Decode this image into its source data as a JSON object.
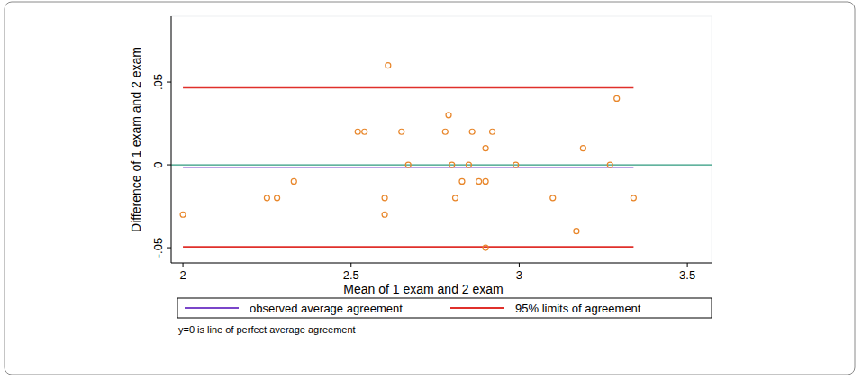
{
  "chart_data": {
    "type": "scatter",
    "x_label": "Mean of 1 exam and 2 exam",
    "y_label": "Difference of 1 exam and 2 exam",
    "x": [
      2.0,
      2.25,
      2.28,
      2.33,
      2.52,
      2.54,
      2.6,
      2.6,
      2.61,
      2.65,
      2.67,
      2.78,
      2.79,
      2.8,
      2.81,
      2.83,
      2.85,
      2.86,
      2.88,
      2.9,
      2.9,
      2.9,
      2.92,
      2.99,
      3.1,
      3.17,
      3.19,
      3.27,
      3.29,
      3.34
    ],
    "values": [
      -0.03,
      -0.02,
      -0.02,
      -0.01,
      0.02,
      0.02,
      -0.03,
      -0.02,
      0.06,
      0.02,
      0,
      0.02,
      0.03,
      0,
      -0.02,
      -0.01,
      0,
      0.02,
      -0.01,
      -0.01,
      0.01,
      -0.05,
      0.02,
      0,
      -0.02,
      -0.04,
      0.01,
      0,
      0.04,
      -0.02
    ],
    "color": "#e8862a",
    "marker": "hollow-circle",
    "xlim": [
      1.965,
      3.572
    ],
    "ylim": [
      -0.0592,
      0.0897
    ],
    "xticks": [
      2,
      2.5,
      3,
      3.5
    ],
    "yticks": [
      {
        "value": -0.05,
        "label": "-.05"
      },
      0,
      {
        "value": 0.05,
        "label": ".05"
      }
    ],
    "grid": false,
    "legend": "bottom",
    "mean_line": {
      "name": "observed average agreement",
      "value": -0.0015,
      "color": "#7a45c9"
    },
    "limits": {
      "name": "95% limits of agreement",
      "values": [
        0.0465,
        -0.0495
      ],
      "color": "#e0302b"
    },
    "zero_line": {
      "value": 0,
      "color": "#2e9a7e",
      "note": "y=0 is line of perfect average agreement"
    }
  }
}
